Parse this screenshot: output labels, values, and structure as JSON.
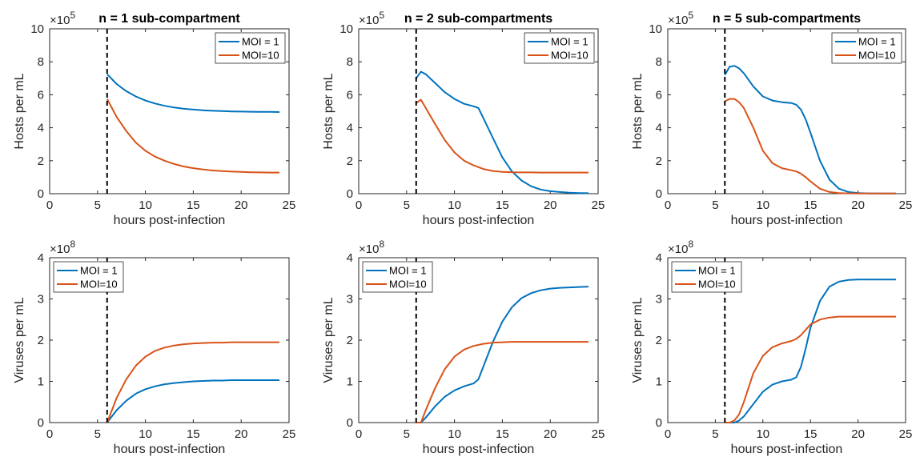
{
  "colors": {
    "moi1": "#0072BD",
    "moi10": "#D95319",
    "vline": "#000000",
    "axis": "#262626"
  },
  "chart_data": [
    {
      "type": "line",
      "title": "n = 1 sub-compartment",
      "xlabel": "hours post-infection",
      "ylabel": "Hosts per mL",
      "xlim": [
        0,
        25
      ],
      "ylim": [
        0,
        10
      ],
      "xticks": [
        "0",
        "5",
        "10",
        "15",
        "20",
        "25"
      ],
      "yticks": [
        "0",
        "2",
        "4",
        "6",
        "8",
        "10"
      ],
      "multiplier_base": "×10",
      "multiplier_exp": "5",
      "legend_position": "top-right",
      "vline_x": 6,
      "series": [
        {
          "name": "MOI = 1",
          "color_key": "moi1",
          "x": [
            6,
            7,
            8,
            9,
            10,
            11,
            12,
            13,
            14,
            15,
            16,
            17,
            18,
            19,
            20,
            21,
            22,
            23,
            24
          ],
          "y": [
            7.25,
            6.65,
            6.22,
            5.9,
            5.65,
            5.47,
            5.33,
            5.23,
            5.15,
            5.1,
            5.06,
            5.03,
            5.01,
            4.99,
            4.98,
            4.97,
            4.96,
            4.96,
            4.95
          ]
        },
        {
          "name": "MOI=10",
          "color_key": "moi10",
          "x": [
            6,
            7,
            8,
            9,
            10,
            11,
            12,
            13,
            14,
            15,
            16,
            17,
            18,
            19,
            20,
            21,
            22,
            23,
            24
          ],
          "y": [
            5.75,
            4.65,
            3.8,
            3.1,
            2.6,
            2.25,
            2.0,
            1.8,
            1.65,
            1.55,
            1.47,
            1.41,
            1.37,
            1.34,
            1.32,
            1.3,
            1.29,
            1.28,
            1.28
          ]
        }
      ]
    },
    {
      "type": "line",
      "title": "n = 2 sub-compartments",
      "xlabel": "hours post-infection",
      "ylabel": "Hosts per mL",
      "xlim": [
        0,
        25
      ],
      "ylim": [
        0,
        10
      ],
      "xticks": [
        "0",
        "5",
        "10",
        "15",
        "20",
        "25"
      ],
      "yticks": [
        "0",
        "2",
        "4",
        "6",
        "8",
        "10"
      ],
      "multiplier_base": "×10",
      "multiplier_exp": "5",
      "legend_position": "top-right",
      "vline_x": 6,
      "series": [
        {
          "name": "MOI = 1",
          "color_key": "moi1",
          "x": [
            6,
            6.5,
            7,
            8,
            9,
            10,
            11,
            12,
            12.5,
            13,
            14,
            15,
            16,
            17,
            18,
            19,
            20,
            21,
            22,
            23,
            24
          ],
          "y": [
            7.0,
            7.4,
            7.25,
            6.7,
            6.15,
            5.75,
            5.45,
            5.3,
            5.2,
            4.6,
            3.4,
            2.2,
            1.35,
            0.8,
            0.45,
            0.25,
            0.15,
            0.1,
            0.06,
            0.04,
            0.03
          ]
        },
        {
          "name": "MOI=10",
          "color_key": "moi10",
          "x": [
            6,
            6.5,
            7,
            8,
            9,
            10,
            11,
            12,
            13,
            14,
            15,
            16,
            17,
            18,
            19,
            20,
            21,
            22,
            23,
            24
          ],
          "y": [
            5.5,
            5.7,
            5.2,
            4.2,
            3.25,
            2.5,
            2.0,
            1.72,
            1.5,
            1.38,
            1.32,
            1.3,
            1.29,
            1.29,
            1.28,
            1.28,
            1.28,
            1.28,
            1.28,
            1.28
          ]
        }
      ]
    },
    {
      "type": "line",
      "title": "n = 5 sub-compartments",
      "xlabel": "hours post-infection",
      "ylabel": "Hosts per mL",
      "xlim": [
        0,
        25
      ],
      "ylim": [
        0,
        10
      ],
      "xticks": [
        "0",
        "5",
        "10",
        "15",
        "20",
        "25"
      ],
      "yticks": [
        "0",
        "2",
        "4",
        "6",
        "8",
        "10"
      ],
      "multiplier_base": "×10",
      "multiplier_exp": "5",
      "legend_position": "top-right",
      "vline_x": 6,
      "series": [
        {
          "name": "MOI = 1",
          "color_key": "moi1",
          "x": [
            6,
            6.5,
            7,
            7.5,
            8,
            9,
            10,
            11,
            12,
            13,
            13.5,
            14,
            14.5,
            15,
            16,
            17,
            18,
            19,
            20,
            21,
            22,
            23,
            24
          ],
          "y": [
            7.2,
            7.7,
            7.75,
            7.6,
            7.3,
            6.5,
            5.9,
            5.65,
            5.55,
            5.5,
            5.4,
            5.1,
            4.5,
            3.7,
            2.0,
            0.85,
            0.3,
            0.1,
            0.04,
            0.02,
            0.01,
            0.01,
            0.01
          ]
        },
        {
          "name": "MOI=10",
          "color_key": "moi10",
          "x": [
            6,
            6.5,
            7,
            7.5,
            8,
            9,
            10,
            11,
            12,
            13,
            13.5,
            14,
            14.5,
            15,
            16,
            17,
            18,
            19,
            20,
            21,
            22,
            23,
            24
          ],
          "y": [
            5.6,
            5.75,
            5.75,
            5.55,
            5.2,
            4.0,
            2.6,
            1.85,
            1.55,
            1.42,
            1.35,
            1.22,
            1.0,
            0.75,
            0.3,
            0.1,
            0.04,
            0.02,
            0.01,
            0.01,
            0.01,
            0.01,
            0.01
          ]
        }
      ]
    },
    {
      "type": "line",
      "title": "",
      "xlabel": "hours post-infection",
      "ylabel": "Viruses per mL",
      "xlim": [
        0,
        25
      ],
      "ylim": [
        0,
        4
      ],
      "xticks": [
        "0",
        "5",
        "10",
        "15",
        "20",
        "25"
      ],
      "yticks": [
        "0",
        "1",
        "2",
        "3",
        "4"
      ],
      "multiplier_base": "×10",
      "multiplier_exp": "8",
      "legend_position": "top-left",
      "vline_x": 6,
      "series": [
        {
          "name": "MOI = 1",
          "color_key": "moi1",
          "x": [
            6,
            7,
            8,
            9,
            10,
            11,
            12,
            13,
            14,
            15,
            16,
            17,
            18,
            19,
            20,
            21,
            22,
            23,
            24
          ],
          "y": [
            0,
            0.3,
            0.53,
            0.7,
            0.81,
            0.88,
            0.93,
            0.96,
            0.98,
            1.0,
            1.01,
            1.02,
            1.02,
            1.03,
            1.03,
            1.03,
            1.03,
            1.03,
            1.03
          ]
        },
        {
          "name": "MOI=10",
          "color_key": "moi10",
          "x": [
            6,
            7,
            8,
            9,
            10,
            11,
            12,
            13,
            14,
            15,
            16,
            17,
            18,
            19,
            20,
            21,
            22,
            23,
            24
          ],
          "y": [
            0,
            0.6,
            1.05,
            1.38,
            1.6,
            1.74,
            1.82,
            1.87,
            1.9,
            1.92,
            1.93,
            1.94,
            1.94,
            1.95,
            1.95,
            1.95,
            1.95,
            1.95,
            1.95
          ]
        }
      ]
    },
    {
      "type": "line",
      "title": "",
      "xlabel": "hours post-infection",
      "ylabel": "Viruses per mL",
      "xlim": [
        0,
        25
      ],
      "ylim": [
        0,
        4
      ],
      "xticks": [
        "0",
        "5",
        "10",
        "15",
        "20",
        "25"
      ],
      "yticks": [
        "0",
        "1",
        "2",
        "3",
        "4"
      ],
      "multiplier_base": "×10",
      "multiplier_exp": "8",
      "legend_position": "top-left",
      "vline_x": 6,
      "series": [
        {
          "name": "MOI = 1",
          "color_key": "moi1",
          "x": [
            6,
            6.5,
            7,
            8,
            9,
            10,
            11,
            12,
            12.5,
            13,
            14,
            15,
            16,
            17,
            18,
            19,
            20,
            21,
            22,
            23,
            24
          ],
          "y": [
            0,
            0,
            0.12,
            0.4,
            0.63,
            0.78,
            0.88,
            0.95,
            1.05,
            1.35,
            1.95,
            2.45,
            2.8,
            3.02,
            3.14,
            3.21,
            3.25,
            3.27,
            3.28,
            3.29,
            3.3
          ]
        },
        {
          "name": "MOI=10",
          "color_key": "moi10",
          "x": [
            6,
            6.5,
            7,
            8,
            9,
            10,
            11,
            12,
            13,
            14,
            15,
            16,
            17,
            18,
            19,
            20,
            21,
            22,
            23,
            24
          ],
          "y": [
            0,
            0,
            0.3,
            0.85,
            1.3,
            1.6,
            1.77,
            1.86,
            1.91,
            1.94,
            1.95,
            1.96,
            1.96,
            1.96,
            1.96,
            1.96,
            1.96,
            1.96,
            1.96,
            1.96
          ]
        }
      ]
    },
    {
      "type": "line",
      "title": "",
      "xlabel": "hours post-infection",
      "ylabel": "Viruses per mL",
      "xlim": [
        0,
        25
      ],
      "ylim": [
        0,
        4
      ],
      "xticks": [
        "0",
        "5",
        "10",
        "15",
        "20",
        "25"
      ],
      "yticks": [
        "0",
        "1",
        "2",
        "3",
        "4"
      ],
      "multiplier_base": "×10",
      "multiplier_exp": "8",
      "legend_position": "top-left",
      "vline_x": 6,
      "series": [
        {
          "name": "MOI = 1",
          "color_key": "moi1",
          "x": [
            6,
            6.5,
            7,
            7.5,
            8,
            9,
            10,
            11,
            12,
            13,
            13.5,
            14,
            14.5,
            15,
            16,
            17,
            18,
            19,
            20,
            21,
            22,
            23,
            24
          ],
          "y": [
            0,
            0,
            0,
            0.05,
            0.15,
            0.45,
            0.75,
            0.92,
            1.0,
            1.04,
            1.1,
            1.35,
            1.8,
            2.3,
            2.95,
            3.3,
            3.42,
            3.46,
            3.47,
            3.47,
            3.47,
            3.47,
            3.47
          ]
        },
        {
          "name": "MOI=10",
          "color_key": "moi10",
          "x": [
            6,
            6.5,
            7,
            7.5,
            8,
            9,
            10,
            11,
            12,
            13,
            13.5,
            14,
            14.5,
            15,
            16,
            17,
            18,
            19,
            20,
            21,
            22,
            23,
            24
          ],
          "y": [
            0,
            0,
            0.05,
            0.2,
            0.5,
            1.2,
            1.62,
            1.83,
            1.92,
            1.98,
            2.03,
            2.12,
            2.25,
            2.38,
            2.5,
            2.55,
            2.57,
            2.57,
            2.57,
            2.57,
            2.57,
            2.57,
            2.57
          ]
        }
      ]
    }
  ]
}
